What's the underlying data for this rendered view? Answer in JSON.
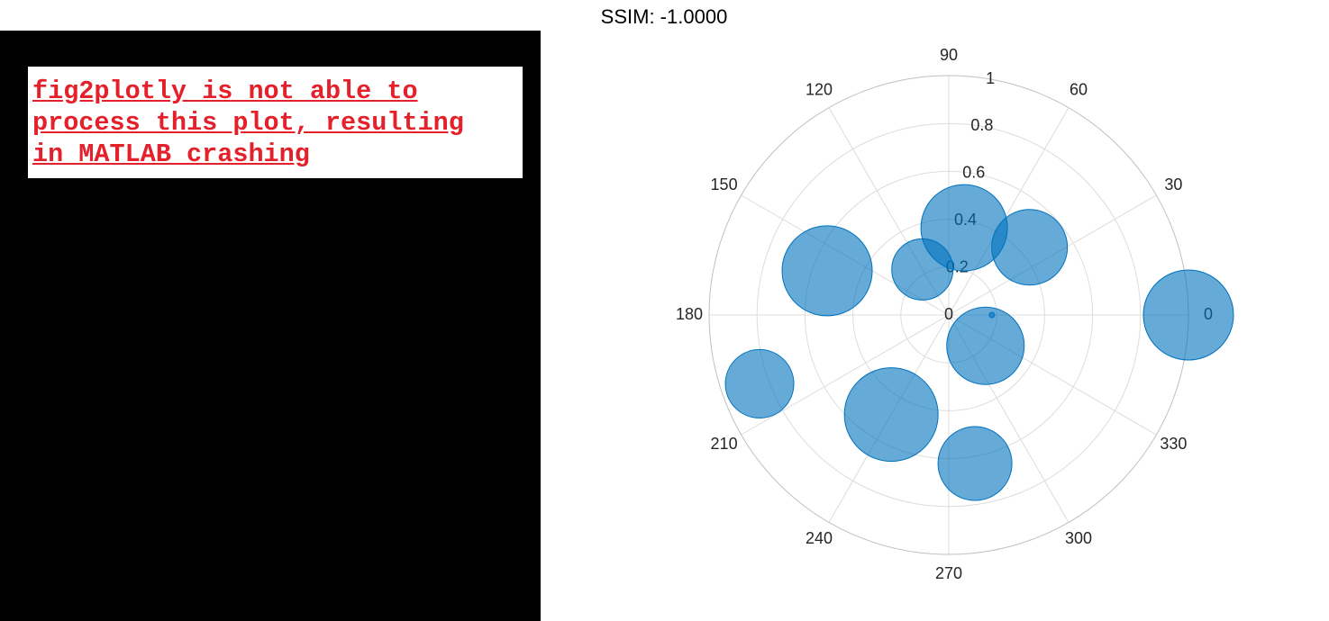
{
  "notice": {
    "lines": [
      "fig2plotly is not able to",
      "process this plot, resulting",
      "in MATLAB crashing"
    ]
  },
  "chart_data": {
    "type": "polar_scatter",
    "title": "SSIM: -1.0000",
    "theta": [
      0,
      40,
      80,
      120,
      160,
      200,
      240,
      280,
      320,
      360
    ],
    "r": [
      1.0,
      0.44,
      0.37,
      0.22,
      0.54,
      0.84,
      0.48,
      0.63,
      0.2,
      0.18
    ],
    "sizes": [
      50,
      42,
      48,
      34,
      50,
      38,
      52,
      41,
      43,
      3
    ],
    "color": "#0072bd",
    "rlim": [
      0,
      1
    ],
    "rticks": [
      0,
      0.2,
      0.4,
      0.6,
      0.8,
      1
    ],
    "thetaticks": [
      0,
      30,
      60,
      90,
      120,
      150,
      180,
      210,
      240,
      270,
      300,
      330
    ],
    "grid": true
  }
}
